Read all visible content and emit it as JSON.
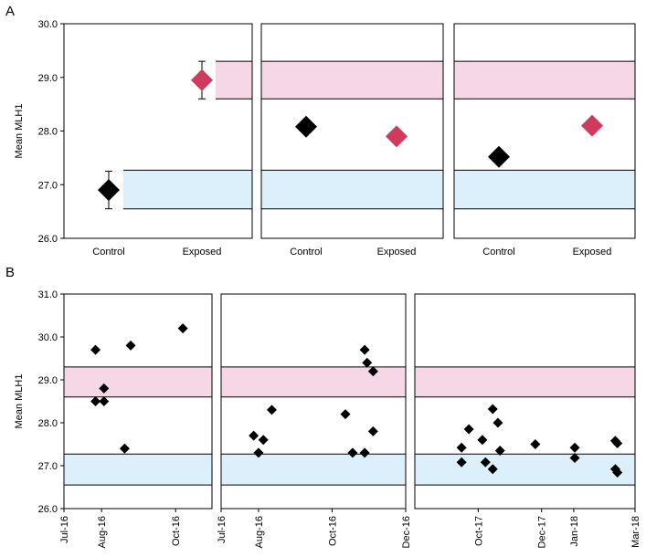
{
  "panel_a_label": "A",
  "panel_b_label": "B",
  "colors": {
    "pink_band": "#f5d7e6",
    "blue_band": "#dcf0fb",
    "control_marker": "#000000",
    "exposed_marker": "#d03a5c"
  },
  "chart_data": [
    {
      "id": "A1",
      "type": "scatter",
      "ylabel": "Mean MLH1",
      "ylim": [
        26.0,
        30.0
      ],
      "yticks": [
        26.0,
        27.0,
        28.0,
        29.0,
        30.0
      ],
      "ytick_labels": [
        "26.0",
        "27.0",
        "28.0",
        "29.0",
        "30.0"
      ],
      "categories": [
        "Control",
        "Exposed"
      ],
      "points": [
        {
          "category": "Control",
          "y": 26.9,
          "err": 0.35,
          "group": "control"
        },
        {
          "category": "Exposed",
          "y": 28.95,
          "err": 0.35,
          "group": "exposed"
        }
      ],
      "bands": [
        {
          "name": "exposed-range",
          "y0": 28.6,
          "y1": 29.3,
          "color": "pink"
        },
        {
          "name": "control-range",
          "y0": 26.55,
          "y1": 27.27,
          "color": "blue"
        }
      ]
    },
    {
      "id": "A2",
      "type": "scatter",
      "ylim": [
        26.0,
        30.0
      ],
      "categories": [
        "Control",
        "Exposed"
      ],
      "points": [
        {
          "category": "Control",
          "y": 28.08,
          "group": "control"
        },
        {
          "category": "Exposed",
          "y": 27.9,
          "group": "exposed"
        }
      ],
      "bands": [
        {
          "name": "exposed-range",
          "y0": 28.6,
          "y1": 29.3,
          "color": "pink"
        },
        {
          "name": "control-range",
          "y0": 26.55,
          "y1": 27.27,
          "color": "blue"
        }
      ]
    },
    {
      "id": "A3",
      "type": "scatter",
      "ylim": [
        26.0,
        30.0
      ],
      "categories": [
        "Control",
        "Exposed"
      ],
      "points": [
        {
          "category": "Control",
          "y": 27.52,
          "group": "control"
        },
        {
          "category": "Exposed",
          "y": 28.1,
          "group": "exposed"
        }
      ],
      "bands": [
        {
          "name": "exposed-range",
          "y0": 28.6,
          "y1": 29.3,
          "color": "pink"
        },
        {
          "name": "control-range",
          "y0": 26.55,
          "y1": 27.27,
          "color": "blue"
        }
      ]
    },
    {
      "id": "B1",
      "type": "scatter",
      "ylabel": "Mean MLH1",
      "ylim": [
        26.0,
        31.0
      ],
      "yticks": [
        26.0,
        27.0,
        28.0,
        29.0,
        30.0,
        31.0
      ],
      "ytick_labels": [
        "26.0",
        "27.0",
        "28.0",
        "29.0",
        "30.0",
        "31.0"
      ],
      "x_date_range": [
        "2016-07-01",
        "2016-10-31"
      ],
      "xtick_dates": [
        "2016-07-01",
        "2016-08-01",
        "2016-10-01"
      ],
      "xtick_labels": [
        "Jul-16",
        "Aug-16",
        "Oct-16"
      ],
      "points": [
        {
          "x": "2016-07-27",
          "y": 29.7
        },
        {
          "x": "2016-07-27",
          "y": 28.5
        },
        {
          "x": "2016-08-03",
          "y": 28.8
        },
        {
          "x": "2016-08-03",
          "y": 28.5
        },
        {
          "x": "2016-08-20",
          "y": 27.4
        },
        {
          "x": "2016-08-25",
          "y": 29.8
        },
        {
          "x": "2016-10-07",
          "y": 30.2
        }
      ],
      "bands": [
        {
          "name": "exposed-range",
          "y0": 28.6,
          "y1": 29.3,
          "color": "pink"
        },
        {
          "name": "control-range",
          "y0": 26.55,
          "y1": 27.27,
          "color": "blue"
        }
      ]
    },
    {
      "id": "B2",
      "type": "scatter",
      "ylim": [
        26.0,
        31.0
      ],
      "x_date_range": [
        "2016-07-01",
        "2016-12-01"
      ],
      "xtick_dates": [
        "2016-07-01",
        "2016-08-01",
        "2016-10-01",
        "2016-12-01"
      ],
      "xtick_labels": [
        "Jul-16",
        "Aug-16",
        "Oct-16",
        "Dec-16"
      ],
      "points": [
        {
          "x": "2016-07-28",
          "y": 27.7
        },
        {
          "x": "2016-08-01",
          "y": 27.3
        },
        {
          "x": "2016-08-05",
          "y": 27.6
        },
        {
          "x": "2016-08-12",
          "y": 28.3
        },
        {
          "x": "2016-10-12",
          "y": 28.2
        },
        {
          "x": "2016-10-18",
          "y": 27.3
        },
        {
          "x": "2016-10-28",
          "y": 27.3
        },
        {
          "x": "2016-10-28",
          "y": 29.7
        },
        {
          "x": "2016-10-30",
          "y": 29.4
        },
        {
          "x": "2016-11-04",
          "y": 29.2
        },
        {
          "x": "2016-11-04",
          "y": 27.8
        }
      ],
      "bands": [
        {
          "name": "exposed-range",
          "y0": 28.6,
          "y1": 29.3,
          "color": "pink"
        },
        {
          "name": "control-range",
          "y0": 26.55,
          "y1": 27.27,
          "color": "blue"
        }
      ]
    },
    {
      "id": "B3",
      "type": "scatter",
      "ylim": [
        26.0,
        31.0
      ],
      "x_date_range": [
        "2017-08-01",
        "2018-03-01"
      ],
      "xtick_dates": [
        "2017-10-01",
        "2017-12-01",
        "2018-01-01",
        "2018-03-01"
      ],
      "xtick_labels": [
        "Oct-17",
        "Dec-17",
        "Jan-18",
        "Mar-18"
      ],
      "points": [
        {
          "x": "2017-09-15",
          "y": 27.42
        },
        {
          "x": "2017-09-15",
          "y": 27.08
        },
        {
          "x": "2017-09-22",
          "y": 27.85
        },
        {
          "x": "2017-10-05",
          "y": 27.6
        },
        {
          "x": "2017-10-08",
          "y": 27.08
        },
        {
          "x": "2017-10-15",
          "y": 26.92
        },
        {
          "x": "2017-10-15",
          "y": 28.32
        },
        {
          "x": "2017-10-20",
          "y": 28.0
        },
        {
          "x": "2017-10-22",
          "y": 27.35
        },
        {
          "x": "2017-11-25",
          "y": 27.5
        },
        {
          "x": "2018-01-02",
          "y": 27.42
        },
        {
          "x": "2018-01-02",
          "y": 27.18
        },
        {
          "x": "2018-02-10",
          "y": 27.58
        },
        {
          "x": "2018-02-12",
          "y": 27.52
        },
        {
          "x": "2018-02-10",
          "y": 26.92
        },
        {
          "x": "2018-02-12",
          "y": 26.84
        }
      ],
      "bands": [
        {
          "name": "exposed-range",
          "y0": 28.6,
          "y1": 29.3,
          "color": "pink"
        },
        {
          "name": "control-range",
          "y0": 26.55,
          "y1": 27.27,
          "color": "blue"
        }
      ]
    }
  ]
}
